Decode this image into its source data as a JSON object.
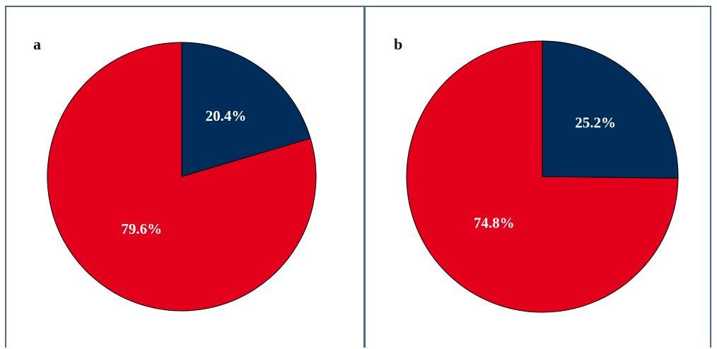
{
  "colors": {
    "dark": "#012d5a",
    "red": "#e2001a",
    "border": "#4a6a86"
  },
  "chart_data": [
    {
      "type": "pie",
      "panel_label": "a",
      "slices": [
        {
          "value": 20.4,
          "label": "20.4%",
          "color": "#012d5a"
        },
        {
          "value": 79.6,
          "label": "79.6%",
          "color": "#e2001a"
        }
      ]
    },
    {
      "type": "pie",
      "panel_label": "b",
      "slices": [
        {
          "value": 25.2,
          "label": "25.2%",
          "color": "#012d5a"
        },
        {
          "value": 74.8,
          "label": "74.8%",
          "color": "#e2001a"
        }
      ]
    }
  ]
}
